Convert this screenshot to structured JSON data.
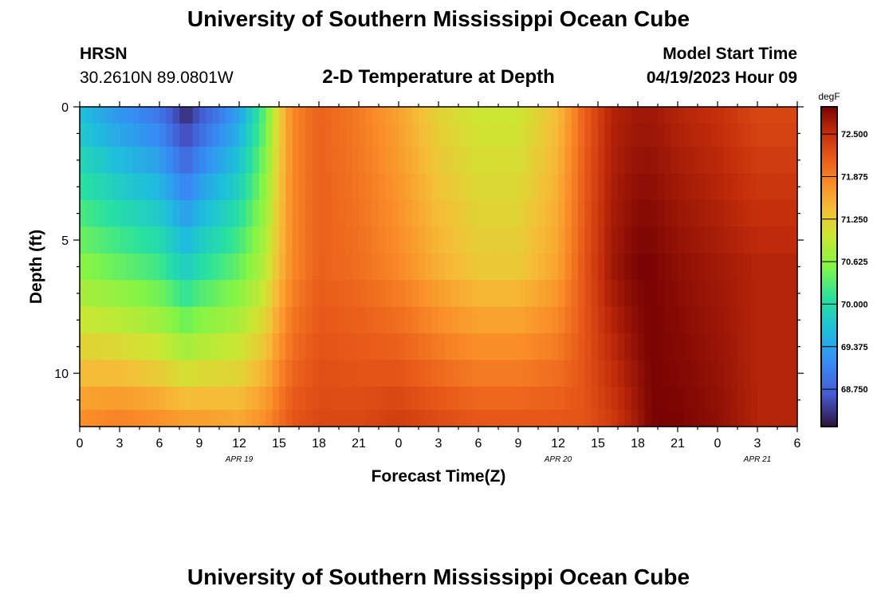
{
  "header": {
    "title": "University of Southern Mississippi Ocean Cube",
    "station": "HRSN",
    "coords": "30.2610N  89.0801W",
    "subtitle": "2-D Temperature at Depth",
    "model_label": "Model Start Time",
    "model_time": "04/19/2023 Hour 09"
  },
  "footer": {
    "title": "University of Southern Mississippi Ocean Cube"
  },
  "chart_data": {
    "type": "heatmap",
    "title": "2-D Temperature at Depth",
    "xlabel": "Forecast Time(Z)",
    "ylabel": "Depth (ft)",
    "x_hours_range": [
      0,
      54
    ],
    "x_tick_labels": [
      "0",
      "3",
      "6",
      "9",
      "12",
      "15",
      "18",
      "21",
      "0",
      "3",
      "6",
      "9",
      "12",
      "15",
      "18",
      "21",
      "0",
      "3",
      "6"
    ],
    "date_labels": [
      {
        "hour": 12,
        "text": "APR 19"
      },
      {
        "hour": 36,
        "text": "APR 20"
      },
      {
        "hour": 51,
        "text": "APR 21"
      }
    ],
    "y_range": [
      0,
      12
    ],
    "y_ticks": [
      0,
      5,
      10
    ],
    "colorbar": {
      "unit": "degF",
      "min": 68.2,
      "max": 72.9,
      "ticks": [
        "72.500",
        "71.875",
        "71.250",
        "70.625",
        "70.000",
        "69.375",
        "68.750"
      ],
      "tick_values": [
        72.5,
        71.875,
        71.25,
        70.625,
        70.0,
        69.375,
        68.75
      ]
    },
    "depth_levels_ft": [
      0.25,
      1,
      2,
      3,
      4,
      5,
      6,
      7,
      8,
      9,
      10,
      11,
      11.75
    ],
    "time_profile": {
      "hours": [
        0,
        3,
        6,
        8,
        9,
        12,
        14,
        15,
        16,
        18,
        21,
        24,
        27,
        30,
        33,
        36,
        38,
        40,
        42,
        43,
        45,
        48,
        51,
        54
      ],
      "surface": [
        69.6,
        69.2,
        68.9,
        68.3,
        68.6,
        69.3,
        70.4,
        71.2,
        71.8,
        72.1,
        71.9,
        71.6,
        71.2,
        71.0,
        71.0,
        71.4,
        72.1,
        72.6,
        72.7,
        72.7,
        72.6,
        72.5,
        72.3,
        72.3
      ],
      "mid": [
        70.6,
        70.4,
        70.2,
        69.8,
        70.0,
        70.4,
        70.9,
        71.4,
        71.8,
        72.1,
        72.0,
        71.8,
        71.5,
        71.3,
        71.3,
        71.6,
        72.2,
        72.7,
        72.9,
        72.9,
        72.8,
        72.7,
        72.6,
        72.6
      ],
      "bottom": [
        71.8,
        71.9,
        71.8,
        71.7,
        71.7,
        71.6,
        71.8,
        72.0,
        72.2,
        72.3,
        72.3,
        72.4,
        72.3,
        72.2,
        72.2,
        72.2,
        72.2,
        72.4,
        72.7,
        72.9,
        72.9,
        72.8,
        72.6,
        72.6
      ]
    }
  }
}
